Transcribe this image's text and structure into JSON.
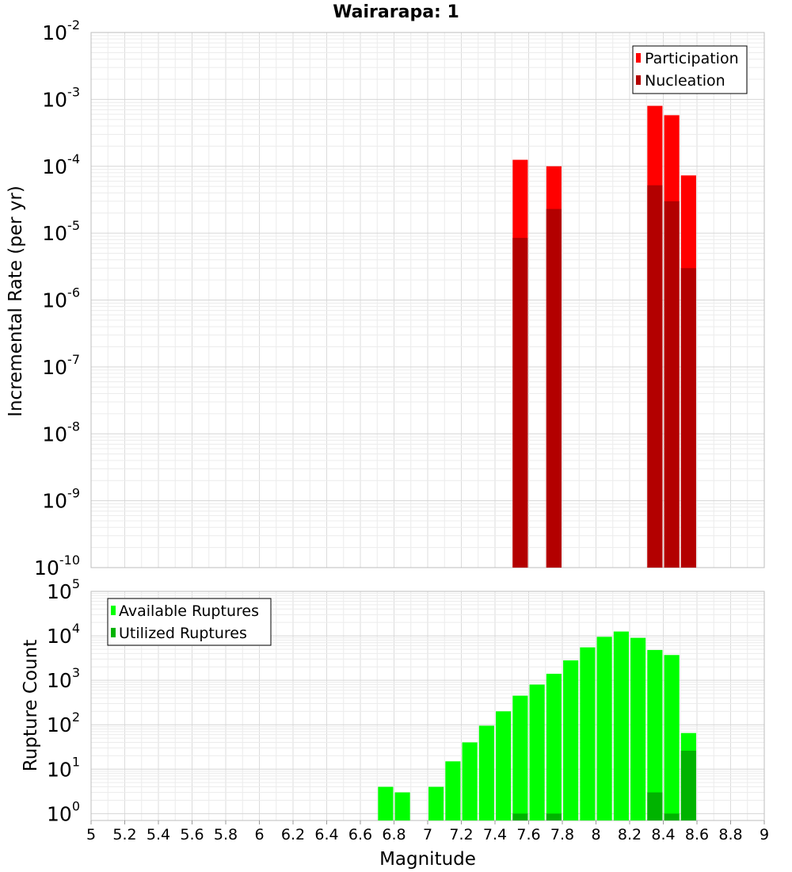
{
  "chart_data": [
    {
      "type": "bar",
      "title": "Wairarapa: 1",
      "xlabel": "Magnitude",
      "ylabel": "Incremental Rate (per yr)",
      "y_scale": "log",
      "ylim": [
        1e-10,
        0.01
      ],
      "xlim": [
        5,
        9
      ],
      "grid": true,
      "legend_position": "top-right",
      "series": [
        {
          "name": "Participation",
          "color": "#ff0000",
          "x": [
            7.55,
            7.75,
            8.35,
            8.45,
            8.55
          ],
          "values": [
            0.000125,
            0.0001,
            0.0008,
            0.00058,
            7.3e-05
          ]
        },
        {
          "name": "Nucleation",
          "color": "#b30000",
          "x": [
            7.55,
            7.75,
            8.35,
            8.45,
            8.55
          ],
          "values": [
            8.5e-06,
            2.3e-05,
            5.2e-05,
            3e-05,
            3e-06
          ]
        }
      ]
    },
    {
      "type": "bar",
      "xlabel": "Magnitude",
      "ylabel": "Rupture Count",
      "y_scale": "log",
      "ylim": [
        0.7,
        100000.0
      ],
      "xlim": [
        5,
        9
      ],
      "grid": true,
      "legend_position": "top-left",
      "series": [
        {
          "name": "Available Ruptures",
          "color": "#00ff00",
          "x": [
            6.75,
            6.85,
            7.05,
            7.15,
            7.25,
            7.35,
            7.45,
            7.55,
            7.65,
            7.75,
            7.85,
            7.95,
            8.05,
            8.15,
            8.25,
            8.35,
            8.45,
            8.55
          ],
          "values": [
            4,
            3,
            4,
            15,
            40,
            95,
            200,
            450,
            800,
            1400,
            2800,
            5500,
            9500,
            12500,
            9000,
            4800,
            3700,
            65
          ]
        },
        {
          "name": "Utilized Ruptures",
          "color": "#00b300",
          "x": [
            7.55,
            7.75,
            8.35,
            8.45,
            8.55
          ],
          "values": [
            1,
            1,
            3,
            1,
            26
          ]
        }
      ]
    }
  ],
  "axes": {
    "x_ticks": [
      "5",
      "5.2",
      "5.4",
      "5.6",
      "5.8",
      "6",
      "6.2",
      "6.4",
      "6.6",
      "6.8",
      "7",
      "7.2",
      "7.4",
      "7.6",
      "7.8",
      "8",
      "8.2",
      "8.4",
      "8.6",
      "8.8",
      "9"
    ],
    "top_y_ticks": [
      {
        "base": "10",
        "exp": "-2"
      },
      {
        "base": "10",
        "exp": "-3"
      },
      {
        "base": "10",
        "exp": "-4"
      },
      {
        "base": "10",
        "exp": "-5"
      },
      {
        "base": "10",
        "exp": "-6"
      },
      {
        "base": "10",
        "exp": "-7"
      },
      {
        "base": "10",
        "exp": "-8"
      },
      {
        "base": "10",
        "exp": "-9"
      },
      {
        "base": "10",
        "exp": "-10"
      }
    ],
    "bottom_y_ticks": [
      {
        "base": "10",
        "exp": "5"
      },
      {
        "base": "10",
        "exp": "4"
      },
      {
        "base": "10",
        "exp": "3"
      },
      {
        "base": "10",
        "exp": "2"
      },
      {
        "base": "10",
        "exp": "1"
      },
      {
        "base": "10",
        "exp": "0"
      }
    ]
  }
}
